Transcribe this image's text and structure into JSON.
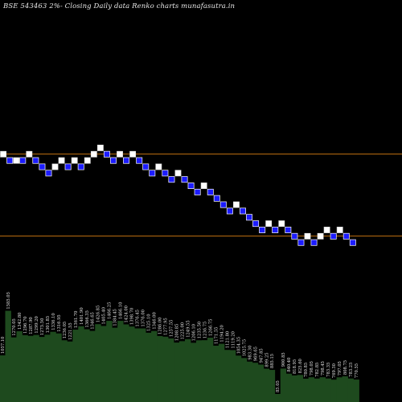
{
  "title": "BSE 543463 2%-  Closing Daily data  Renko  charts munafasutra.in",
  "colors": {
    "background": "#000000",
    "up_brick": "#ffffff",
    "down_brick": "#1c1cff",
    "reference_line": "#c07010",
    "volume": "#1e4a1e"
  },
  "chart_data": {
    "type": "renko",
    "title": "BSE 543463 2%-  Closing Daily data  Renko  charts munafasutra.in",
    "reference_lines": [
      1,
      -12
    ],
    "bricks": [
      {
        "dir": "up",
        "level": 1
      },
      {
        "dir": "down",
        "level": 0
      },
      {
        "dir": "up",
        "level": 0
      },
      {
        "dir": "down",
        "level": 0
      },
      {
        "dir": "up",
        "level": 1
      },
      {
        "dir": "down",
        "level": 0
      },
      {
        "dir": "down",
        "level": -1
      },
      {
        "dir": "down",
        "level": -2
      },
      {
        "dir": "up",
        "level": -1
      },
      {
        "dir": "up",
        "level": 0
      },
      {
        "dir": "down",
        "level": -1
      },
      {
        "dir": "up",
        "level": 0
      },
      {
        "dir": "down",
        "level": -1
      },
      {
        "dir": "up",
        "level": 0
      },
      {
        "dir": "up",
        "level": 1
      },
      {
        "dir": "up",
        "level": 2
      },
      {
        "dir": "down",
        "level": 1
      },
      {
        "dir": "down",
        "level": 0
      },
      {
        "dir": "up",
        "level": 1
      },
      {
        "dir": "down",
        "level": 0
      },
      {
        "dir": "up",
        "level": 1
      },
      {
        "dir": "down",
        "level": 0
      },
      {
        "dir": "down",
        "level": -1
      },
      {
        "dir": "down",
        "level": -2
      },
      {
        "dir": "up",
        "level": -1
      },
      {
        "dir": "down",
        "level": -2
      },
      {
        "dir": "down",
        "level": -3
      },
      {
        "dir": "up",
        "level": -2
      },
      {
        "dir": "down",
        "level": -3
      },
      {
        "dir": "down",
        "level": -4
      },
      {
        "dir": "down",
        "level": -5
      },
      {
        "dir": "up",
        "level": -4
      },
      {
        "dir": "down",
        "level": -5
      },
      {
        "dir": "down",
        "level": -6
      },
      {
        "dir": "down",
        "level": -7
      },
      {
        "dir": "down",
        "level": -8
      },
      {
        "dir": "up",
        "level": -7
      },
      {
        "dir": "down",
        "level": -8
      },
      {
        "dir": "down",
        "level": -9
      },
      {
        "dir": "down",
        "level": -10
      },
      {
        "dir": "down",
        "level": -11
      },
      {
        "dir": "up",
        "level": -10
      },
      {
        "dir": "down",
        "level": -11
      },
      {
        "dir": "up",
        "level": -10
      },
      {
        "dir": "down",
        "level": -11
      },
      {
        "dir": "down",
        "level": -12
      },
      {
        "dir": "down",
        "level": -13
      },
      {
        "dir": "up",
        "level": -12
      },
      {
        "dir": "down",
        "level": -13
      },
      {
        "dir": "up",
        "level": -12
      },
      {
        "dir": "up",
        "level": -11
      },
      {
        "dir": "down",
        "level": -12
      },
      {
        "dir": "up",
        "level": -11
      },
      {
        "dir": "down",
        "level": -12
      },
      {
        "dir": "down",
        "level": -13
      }
    ],
    "volume_labels": [
      "1057.10",
      "1585.05",
      "1270.05",
      "1342.80",
      "1296.70",
      "1287.90",
      "1299.20",
      "1275.50",
      "1301.85",
      "1336.10",
      "1316.95",
      "1236.05",
      "1221.55",
      "1361.70",
      "1401.90",
      "1366.35",
      "1346.65",
      "1426.85",
      "1405.40",
      "1466.25",
      "1384.45",
      "1466.10",
      "1424.00",
      "1398.70",
      "1376.45",
      "1376.00",
      "1325.10",
      "1346.00",
      "1286.00",
      "1277.95",
      "1257.55",
      "1208.85",
      "1225.00",
      "1249.55",
      "1206.10",
      "1235.50",
      "1236.75",
      "1266.75",
      "1171.55",
      "1194.20",
      "1121.80",
      "1119.20",
      "1054.35",
      "1025.75",
      "983.30",
      "969.65",
      "947.85",
      "899.25",
      "885.15",
      "85.05",
      "900.85",
      "840.40",
      "818.95",
      "825.60",
      "780.85",
      "798.05",
      "782.85",
      "798.45",
      "783.35",
      "769.30",
      "797.05",
      "808.75",
      "783.25",
      "770.55"
    ]
  }
}
